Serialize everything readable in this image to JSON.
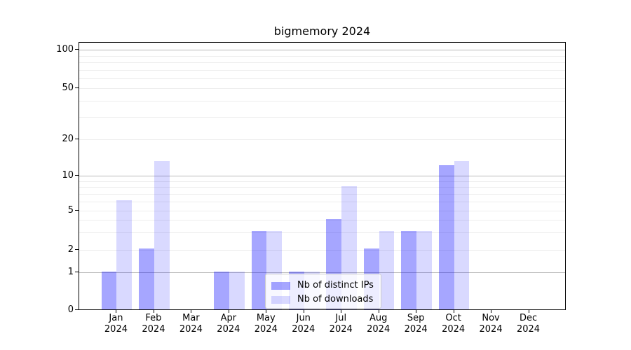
{
  "chart_data": {
    "type": "bar",
    "title": "bigmemory 2024",
    "categories": [
      "Jan",
      "Feb",
      "Mar",
      "Apr",
      "May",
      "Jun",
      "Jul",
      "Aug",
      "Sep",
      "Oct",
      "Nov",
      "Dec"
    ],
    "x_year_label": "2024",
    "series": [
      {
        "name": "Nb of distinct IPs",
        "color": "rgba(0,0,255,0.35)",
        "values": [
          1,
          2,
          0,
          1,
          3,
          1,
          4,
          2,
          3,
          12,
          0,
          0
        ]
      },
      {
        "name": "Nb of downloads",
        "color": "rgba(0,0,255,0.15)",
        "values": [
          6,
          13,
          0,
          1,
          3,
          1,
          8,
          3,
          3,
          13,
          0,
          0
        ]
      }
    ],
    "y_axis": {
      "scale": "symlog",
      "range": [
        0,
        100
      ],
      "ticks": [
        0,
        1,
        2,
        5,
        10,
        20,
        50,
        100
      ],
      "major_grid_ticks": [
        1,
        10,
        100
      ],
      "minor_grid_ticks": [
        2,
        3,
        4,
        5,
        6,
        7,
        8,
        9,
        20,
        30,
        40,
        50,
        60,
        70,
        80,
        90
      ],
      "tick_fractions": {
        "0": 0,
        "1": 0.1399,
        "2": 0.2254,
        "5": 0.3725,
        "10": 0.5007,
        "20": 0.6384,
        "50": 0.8282,
        "100": 0.972
      }
    },
    "legend": {
      "position": "lower center",
      "entries": [
        "Nb of distinct IPs",
        "Nb of downloads"
      ]
    },
    "grid": true,
    "colors": {
      "major_grid": "#b8b8b8",
      "minor_grid": "#ededed",
      "axis": "#000000",
      "legend_border": "#cccccc",
      "legend_background": "rgba(255,255,255,0.8)"
    }
  }
}
